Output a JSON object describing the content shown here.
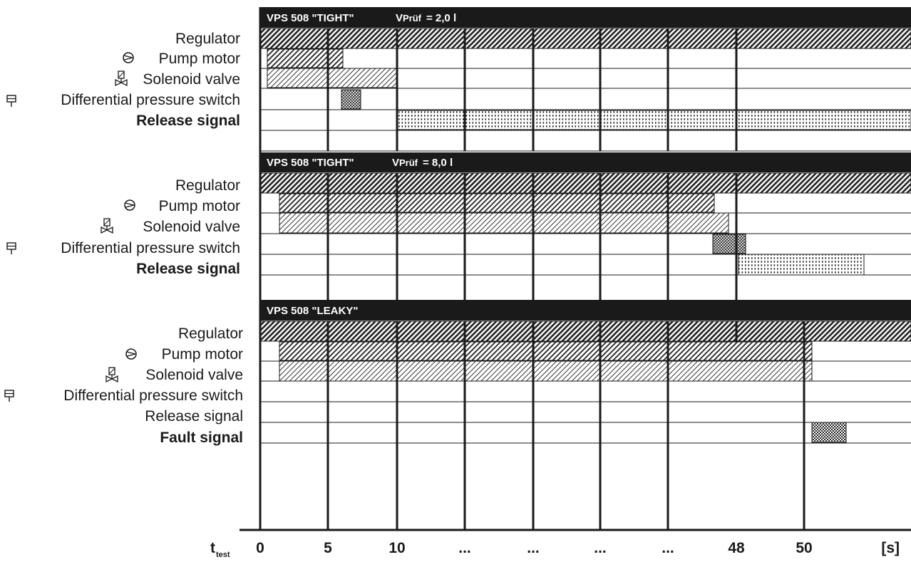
{
  "panels": [
    {
      "header": {
        "title": "VPS 508 \"TIGHT\"",
        "volume_prefix": "V",
        "volume_sub": "Prüf",
        "volume_value": " = 2,0 l"
      },
      "signals": [
        {
          "label": "Regulator",
          "bold": false,
          "icon": null
        },
        {
          "label": "Pump motor",
          "bold": false,
          "icon": "pump-icon"
        },
        {
          "label": "Solenoid valve",
          "bold": false,
          "icon": "solenoid-valve-icon"
        },
        {
          "label": "Differential pressure switch",
          "bold": false,
          "icon": "pressure-switch-icon"
        },
        {
          "label": "Release signal",
          "bold": true,
          "icon": null
        }
      ]
    },
    {
      "header": {
        "title": "VPS 508 \"TIGHT\"",
        "volume_prefix": "V",
        "volume_sub": "Prüf",
        "volume_value": " = 8,0  l"
      },
      "signals": [
        {
          "label": "Regulator",
          "bold": false,
          "icon": null
        },
        {
          "label": "Pump motor",
          "bold": false,
          "icon": "pump-icon"
        },
        {
          "label": "Solenoid valve",
          "bold": false,
          "icon": "solenoid-valve-icon"
        },
        {
          "label": "Differential pressure switch",
          "bold": false,
          "icon": "pressure-switch-icon"
        },
        {
          "label": "Release signal",
          "bold": true,
          "icon": null
        }
      ]
    },
    {
      "header": {
        "title": "VPS 508 \"LEAKY\"",
        "volume_prefix": "",
        "volume_sub": "",
        "volume_value": ""
      },
      "signals": [
        {
          "label": "Regulator",
          "bold": false,
          "icon": null
        },
        {
          "label": "Pump motor",
          "bold": false,
          "icon": "pump-icon"
        },
        {
          "label": "Solenoid valve",
          "bold": false,
          "icon": "solenoid-valve-icon"
        },
        {
          "label": "Differential pressure switch",
          "bold": false,
          "icon": "pressure-switch-icon"
        },
        {
          "label": "Release signal",
          "bold": false,
          "icon": null
        },
        {
          "label": "Fault signal",
          "bold": true,
          "icon": null
        }
      ]
    }
  ],
  "axis": {
    "label_main": "t",
    "label_sub": "test",
    "ticks": [
      "0",
      "5",
      "10",
      "...",
      "...",
      "...",
      "...",
      "48",
      "50"
    ],
    "unit": "[s]"
  },
  "colors": {
    "header_bg": "#1a1a1a",
    "line": "#1a1a1a",
    "background": "#ffffff"
  }
}
